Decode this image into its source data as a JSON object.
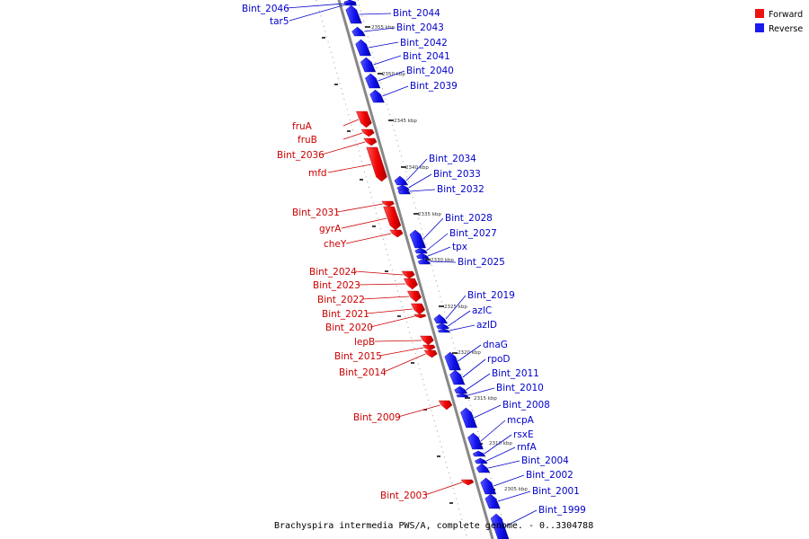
{
  "map": {
    "caption": "Brachyspira intermedia PWS/A, complete genome. - 0..3304788",
    "colors": {
      "forward": "#ee1111",
      "reverse": "#1a1aee",
      "backbone": "#888888"
    },
    "legend": [
      {
        "label": "Forward",
        "color": "#ee1111"
      },
      {
        "label": "Reverse",
        "color": "#1a1aee"
      }
    ],
    "ticks": [
      "2355 kbp",
      "2350 kbp",
      "2345 kbp",
      "2340 kbp",
      "2335 kbp",
      "2330 kbp",
      "2325 kbp",
      "2320 kbp",
      "2315 kbp",
      "2310 kbp",
      "2305 kbp"
    ],
    "features": [
      {
        "name": "Bint_2046",
        "strand": "reverse"
      },
      {
        "name": "tar5",
        "strand": "reverse"
      },
      {
        "name": "Bint_2044",
        "strand": "reverse"
      },
      {
        "name": "Bint_2043",
        "strand": "reverse"
      },
      {
        "name": "Bint_2042",
        "strand": "reverse"
      },
      {
        "name": "Bint_2041",
        "strand": "reverse"
      },
      {
        "name": "Bint_2040",
        "strand": "reverse"
      },
      {
        "name": "Bint_2039",
        "strand": "reverse"
      },
      {
        "name": "fruA",
        "strand": "forward"
      },
      {
        "name": "fruB",
        "strand": "forward"
      },
      {
        "name": "Bint_2036",
        "strand": "forward"
      },
      {
        "name": "mfd",
        "strand": "forward"
      },
      {
        "name": "Bint_2034",
        "strand": "reverse"
      },
      {
        "name": "Bint_2033",
        "strand": "reverse"
      },
      {
        "name": "Bint_2032",
        "strand": "reverse"
      },
      {
        "name": "Bint_2031",
        "strand": "forward"
      },
      {
        "name": "gyrA",
        "strand": "forward"
      },
      {
        "name": "cheY",
        "strand": "forward"
      },
      {
        "name": "Bint_2028",
        "strand": "reverse"
      },
      {
        "name": "Bint_2027",
        "strand": "reverse"
      },
      {
        "name": "tpx",
        "strand": "reverse"
      },
      {
        "name": "Bint_2025",
        "strand": "reverse"
      },
      {
        "name": "Bint_2024",
        "strand": "forward"
      },
      {
        "name": "Bint_2023",
        "strand": "forward"
      },
      {
        "name": "Bint_2022",
        "strand": "forward"
      },
      {
        "name": "Bint_2021",
        "strand": "forward"
      },
      {
        "name": "Bint_2020",
        "strand": "forward"
      },
      {
        "name": "Bint_2019",
        "strand": "reverse"
      },
      {
        "name": "azlC",
        "strand": "reverse"
      },
      {
        "name": "azlD",
        "strand": "reverse"
      },
      {
        "name": "lepB",
        "strand": "forward"
      },
      {
        "name": "Bint_2015",
        "strand": "forward"
      },
      {
        "name": "Bint_2014",
        "strand": "forward"
      },
      {
        "name": "dnaG",
        "strand": "reverse"
      },
      {
        "name": "rpoD",
        "strand": "reverse"
      },
      {
        "name": "Bint_2011",
        "strand": "reverse"
      },
      {
        "name": "Bint_2010",
        "strand": "reverse"
      },
      {
        "name": "Bint_2009",
        "strand": "forward"
      },
      {
        "name": "Bint_2008",
        "strand": "reverse"
      },
      {
        "name": "mcpA",
        "strand": "reverse"
      },
      {
        "name": "rsxE",
        "strand": "reverse"
      },
      {
        "name": "rnfA",
        "strand": "reverse"
      },
      {
        "name": "Bint_2004",
        "strand": "reverse"
      },
      {
        "name": "Bint_2003",
        "strand": "forward"
      },
      {
        "name": "Bint_2002",
        "strand": "reverse"
      },
      {
        "name": "Bint_2001",
        "strand": "reverse"
      },
      {
        "name": "Bint_1999",
        "strand": "reverse"
      }
    ]
  }
}
